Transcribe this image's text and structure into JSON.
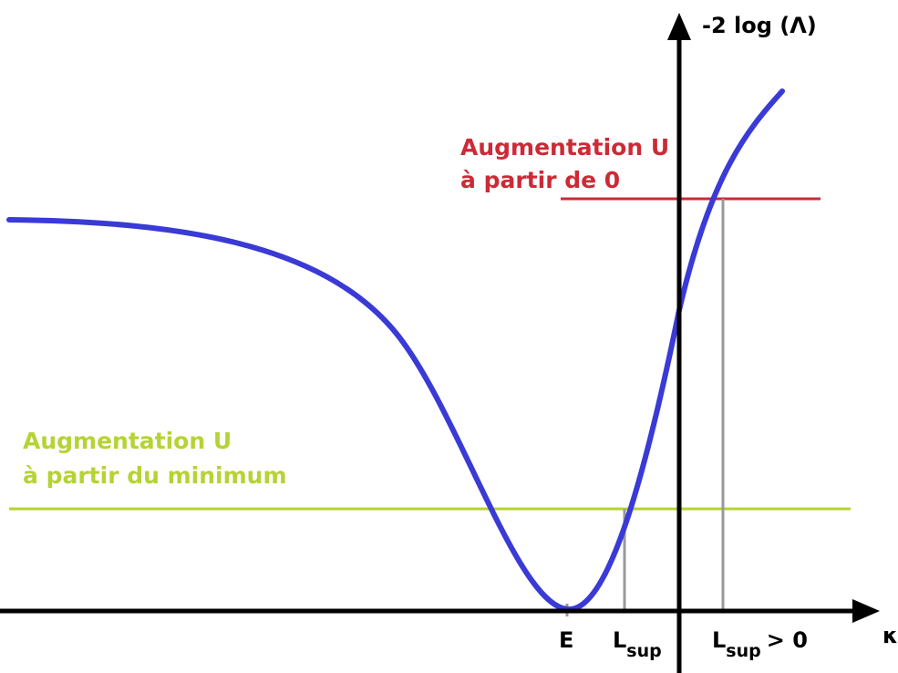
{
  "axes": {
    "y_label": "-2 log (Λ)",
    "x_label": "κ"
  },
  "annotations": {
    "red": {
      "line1": "Augmentation U",
      "line2": "à partir de 0"
    },
    "green": {
      "line1": "Augmentation U",
      "line2": "à partir du minimum"
    }
  },
  "x_markers": {
    "e": "E",
    "lsup": {
      "main": "L",
      "sub": "sup"
    },
    "lsup_pos": {
      "main": "L",
      "sub": "sup",
      "suffix": "> 0"
    }
  }
}
